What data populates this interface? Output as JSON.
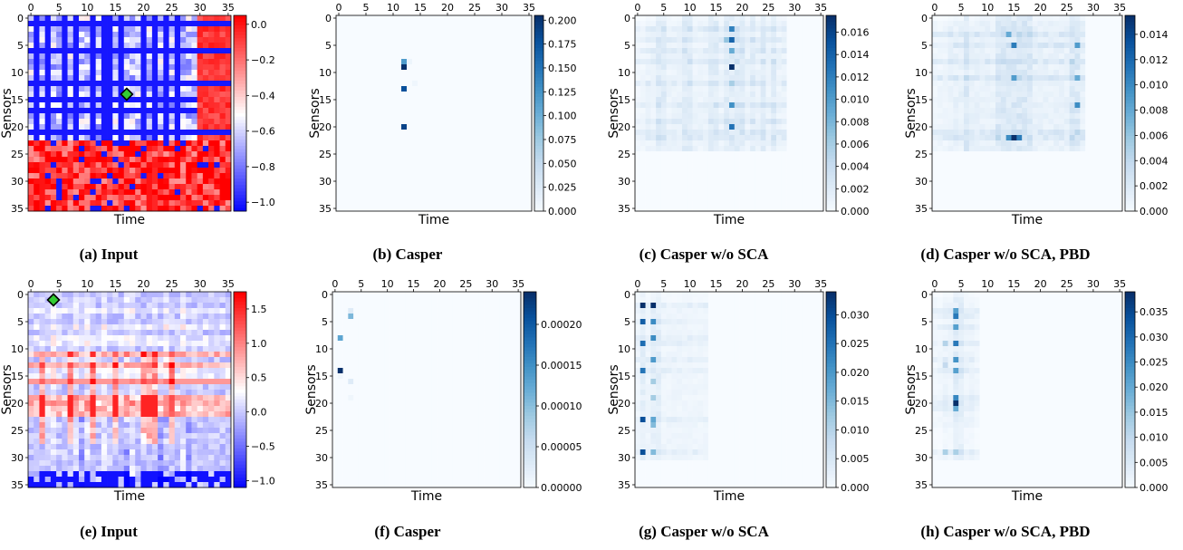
{
  "chart_data": [
    {
      "id": "a",
      "type": "heatmap",
      "caption": "(a) Input",
      "xlabel": "Time",
      "ylabel": "Sensors",
      "x_ticks": [
        0,
        5,
        10,
        15,
        20,
        25,
        30,
        35
      ],
      "y_ticks": [
        0,
        5,
        10,
        15,
        20,
        25,
        30,
        35
      ],
      "colormap": "bwr",
      "colorbar_ticks": [
        "0.0",
        "−0.2",
        "−0.4",
        "−0.6",
        "−0.8",
        "−1.0"
      ],
      "colorbar_range": [
        -1.05,
        0.05
      ],
      "marker": {
        "x": 17,
        "y": 14,
        "color": "#33cc33"
      },
      "pattern": {
        "rows_strong": [
          1,
          6,
          12,
          15,
          17,
          21
        ],
        "rows_light": [],
        "cols_strong": [
          1,
          3,
          6,
          8,
          11,
          13,
          14,
          16,
          20,
          22,
          24,
          26
        ],
        "cols_light": []
      }
    },
    {
      "id": "b",
      "type": "heatmap",
      "caption": "(b) Casper",
      "xlabel": "Time",
      "ylabel": "Sensors",
      "x_ticks": [
        0,
        5,
        10,
        15,
        20,
        25,
        30,
        35
      ],
      "y_ticks": [
        0,
        5,
        10,
        15,
        20,
        25,
        30,
        35
      ],
      "colormap": "Blues",
      "colorbar_ticks": [
        "0.200",
        "0.175",
        "0.150",
        "0.125",
        "0.100",
        "0.075",
        "0.050",
        "0.025",
        "0.000"
      ],
      "colorbar_range": [
        0,
        0.205
      ],
      "cells": [
        {
          "x": 12,
          "y": 8,
          "v": 0.12
        },
        {
          "x": 12,
          "y": 9,
          "v": 0.205
        },
        {
          "x": 12,
          "y": 13,
          "v": 0.18
        },
        {
          "x": 12,
          "y": 20,
          "v": 0.19
        },
        {
          "x": 13,
          "y": 8,
          "v": 0.01
        },
        {
          "x": 14,
          "y": 12,
          "v": 0.008
        }
      ]
    },
    {
      "id": "c",
      "type": "heatmap",
      "caption": "(c) Casper w/o SCA",
      "xlabel": "Time",
      "ylabel": "Sensors",
      "x_ticks": [
        0,
        5,
        10,
        15,
        20,
        25,
        30,
        35
      ],
      "y_ticks": [
        0,
        5,
        10,
        15,
        20,
        25,
        30,
        35
      ],
      "colormap": "Blues",
      "colorbar_ticks": [
        "0.016",
        "0.014",
        "0.012",
        "0.010",
        "0.008",
        "0.006",
        "0.004",
        "0.002",
        "0.000"
      ],
      "colorbar_range": [
        0,
        0.0175
      ],
      "cells": [
        {
          "x": 18,
          "y": 9,
          "v": 0.0175
        },
        {
          "x": 18,
          "y": 4,
          "v": 0.014
        },
        {
          "x": 18,
          "y": 2,
          "v": 0.012
        },
        {
          "x": 18,
          "y": 16,
          "v": 0.011
        },
        {
          "x": 18,
          "y": 20,
          "v": 0.013
        },
        {
          "x": 18,
          "y": 6,
          "v": 0.009
        },
        {
          "x": 17,
          "y": 4,
          "v": 0.007
        },
        {
          "x": 18,
          "y": 12,
          "v": 0.006
        }
      ],
      "pattern": {
        "rows_strong": [
          2,
          4,
          6,
          8,
          12,
          16,
          19,
          21,
          22
        ],
        "rows_light": [
          1,
          3,
          5,
          7,
          9,
          10,
          11,
          13,
          14,
          15,
          17,
          18,
          20,
          23,
          24
        ],
        "cols_strong": [
          4,
          5,
          9,
          10,
          14,
          15,
          17,
          18,
          19,
          20,
          22,
          24,
          26
        ],
        "cols_light": [
          2,
          3,
          6,
          7,
          8,
          11,
          12,
          13,
          16,
          21,
          23,
          25,
          27,
          28
        ],
        "max_row": 24,
        "max_col": 28,
        "scale": 0.004
      }
    },
    {
      "id": "d",
      "type": "heatmap",
      "caption": "(d) Casper w/o SCA, PBD",
      "xlabel": "Time",
      "ylabel": "Sensors",
      "x_ticks": [
        0,
        5,
        10,
        15,
        20,
        25,
        30,
        35
      ],
      "y_ticks": [
        0,
        5,
        10,
        15,
        20,
        25,
        30,
        35
      ],
      "colormap": "Blues",
      "colorbar_ticks": [
        "0.014",
        "0.012",
        "0.010",
        "0.008",
        "0.006",
        "0.004",
        "0.002",
        "0.000"
      ],
      "colorbar_range": [
        0,
        0.0155
      ],
      "cells": [
        {
          "x": 15,
          "y": 22,
          "v": 0.0155
        },
        {
          "x": 16,
          "y": 22,
          "v": 0.011
        },
        {
          "x": 14,
          "y": 22,
          "v": 0.01
        },
        {
          "x": 15,
          "y": 5,
          "v": 0.011
        },
        {
          "x": 15,
          "y": 11,
          "v": 0.009
        },
        {
          "x": 27,
          "y": 16,
          "v": 0.01
        },
        {
          "x": 27,
          "y": 5,
          "v": 0.009
        },
        {
          "x": 14,
          "y": 3,
          "v": 0.008
        },
        {
          "x": 27,
          "y": 11,
          "v": 0.008
        }
      ],
      "pattern": {
        "rows_strong": [
          3,
          5,
          8,
          11,
          21,
          22
        ],
        "rows_light": [
          1,
          2,
          4,
          6,
          7,
          9,
          10,
          12,
          13,
          14,
          15,
          16,
          17,
          18,
          19,
          20,
          23,
          24
        ],
        "cols_strong": [
          6,
          12,
          13,
          14,
          15,
          16,
          17,
          18,
          26,
          27
        ],
        "cols_light": [
          3,
          4,
          5,
          7,
          8,
          9,
          10,
          11,
          19,
          20,
          21,
          22,
          23,
          24,
          25,
          28
        ],
        "max_row": 24,
        "max_col": 28,
        "scale": 0.0045
      }
    },
    {
      "id": "e",
      "type": "heatmap",
      "caption": "(e) Input",
      "xlabel": "Time",
      "ylabel": "Sensors",
      "x_ticks": [
        0,
        5,
        10,
        15,
        20,
        25,
        30,
        35
      ],
      "y_ticks": [
        0,
        5,
        10,
        15,
        20,
        25,
        30,
        35
      ],
      "colormap": "bwr",
      "colorbar_ticks": [
        "1.5",
        "1.0",
        "0.5",
        "0.0",
        "−0.5",
        "−1.0"
      ],
      "colorbar_range": [
        -1.1,
        1.75
      ],
      "marker": {
        "x": 4,
        "y": 1,
        "color": "#33cc33"
      },
      "pattern": {
        "rows_strong": [
          11,
          13,
          16,
          19,
          20,
          21,
          22
        ],
        "rows_light": [
          3,
          6,
          8,
          9,
          14,
          15
        ],
        "cols_strong": [
          2,
          7,
          11,
          15,
          20,
          21,
          22,
          25
        ],
        "cols_light": [
          4,
          8,
          10,
          13,
          17,
          18,
          24,
          27
        ],
        "neg_rows": [
          23,
          28,
          33,
          34,
          35
        ],
        "neg_cols": [
          9,
          17,
          23,
          24,
          28
        ]
      }
    },
    {
      "id": "f",
      "type": "heatmap",
      "caption": "(f) Casper",
      "xlabel": "Time",
      "ylabel": "Sensors",
      "x_ticks": [
        0,
        5,
        10,
        15,
        20,
        25,
        30,
        35
      ],
      "y_ticks": [
        0,
        5,
        10,
        15,
        20,
        25,
        30,
        35
      ],
      "colormap": "Blues",
      "colorbar_ticks": [
        "0.00020",
        "0.00015",
        "0.00010",
        "0.00005",
        "0.00000"
      ],
      "colorbar_range": [
        0,
        0.00024
      ],
      "cells": [
        {
          "x": 1,
          "y": 14,
          "v": 0.00024
        },
        {
          "x": 1,
          "y": 8,
          "v": 0.00013
        },
        {
          "x": 3,
          "y": 4,
          "v": 0.00011
        },
        {
          "x": 3,
          "y": 3,
          "v": 3e-05
        },
        {
          "x": 3,
          "y": 16,
          "v": 3e-05
        },
        {
          "x": 3,
          "y": 19,
          "v": 1e-05
        },
        {
          "x": 1,
          "y": 15,
          "v": 1e-05
        }
      ]
    },
    {
      "id": "g",
      "type": "heatmap",
      "caption": "(g) Casper w/o SCA",
      "xlabel": "Time",
      "ylabel": "Sensors",
      "x_ticks": [
        0,
        5,
        10,
        15,
        20,
        25,
        30,
        35
      ],
      "y_ticks": [
        0,
        5,
        10,
        15,
        20,
        25,
        30,
        35
      ],
      "colormap": "Blues",
      "colorbar_ticks": [
        "0.030",
        "0.025",
        "0.020",
        "0.015",
        "0.010",
        "0.005",
        "0.000"
      ],
      "colorbar_range": [
        0,
        0.034
      ],
      "cells": [
        {
          "x": 1,
          "y": 2,
          "v": 0.034
        },
        {
          "x": 1,
          "y": 5,
          "v": 0.028
        },
        {
          "x": 1,
          "y": 9,
          "v": 0.026
        },
        {
          "x": 1,
          "y": 14,
          "v": 0.025
        },
        {
          "x": 1,
          "y": 23,
          "v": 0.03
        },
        {
          "x": 1,
          "y": 29,
          "v": 0.03
        },
        {
          "x": 3,
          "y": 2,
          "v": 0.034
        },
        {
          "x": 3,
          "y": 5,
          "v": 0.022
        },
        {
          "x": 3,
          "y": 8,
          "v": 0.022
        },
        {
          "x": 3,
          "y": 12,
          "v": 0.02
        },
        {
          "x": 3,
          "y": 23,
          "v": 0.018
        },
        {
          "x": 3,
          "y": 24,
          "v": 0.015
        },
        {
          "x": 3,
          "y": 29,
          "v": 0.015
        },
        {
          "x": 3,
          "y": 16,
          "v": 0.012
        },
        {
          "x": 3,
          "y": 19,
          "v": 0.012
        }
      ],
      "pattern": {
        "rows_strong": [
          2,
          5,
          8,
          9,
          12,
          14,
          23,
          29
        ],
        "rows_light": [
          3,
          4,
          6,
          7,
          10,
          11,
          13,
          15,
          16,
          17,
          18,
          19,
          20,
          21,
          22,
          24,
          25,
          26,
          27,
          28,
          30
        ],
        "cols_strong": [
          1,
          3,
          4
        ],
        "cols_light": [
          0,
          2,
          5,
          6,
          7,
          8,
          9,
          10,
          11,
          12,
          13
        ],
        "max_row": 30,
        "max_col": 13,
        "scale": 0.006
      }
    },
    {
      "id": "h",
      "type": "heatmap",
      "caption": "(h) Casper w/o SCA, PBD",
      "xlabel": "Time",
      "ylabel": "Sensors",
      "x_ticks": [
        0,
        5,
        10,
        15,
        20,
        25,
        30,
        35
      ],
      "y_ticks": [
        0,
        5,
        10,
        15,
        20,
        25,
        30,
        35
      ],
      "colormap": "Blues",
      "colorbar_ticks": [
        "0.035",
        "0.030",
        "0.025",
        "0.020",
        "0.015",
        "0.010",
        "0.005",
        "0.000"
      ],
      "colorbar_range": [
        0,
        0.039
      ],
      "cells": [
        {
          "x": 4,
          "y": 20,
          "v": 0.039
        },
        {
          "x": 4,
          "y": 4,
          "v": 0.028
        },
        {
          "x": 4,
          "y": 9,
          "v": 0.028
        },
        {
          "x": 4,
          "y": 3,
          "v": 0.022
        },
        {
          "x": 4,
          "y": 6,
          "v": 0.022
        },
        {
          "x": 4,
          "y": 12,
          "v": 0.024
        },
        {
          "x": 4,
          "y": 14,
          "v": 0.022
        },
        {
          "x": 4,
          "y": 19,
          "v": 0.026
        },
        {
          "x": 4,
          "y": 21,
          "v": 0.02
        },
        {
          "x": 2,
          "y": 29,
          "v": 0.013
        },
        {
          "x": 4,
          "y": 29,
          "v": 0.013
        },
        {
          "x": 2,
          "y": 9,
          "v": 0.012
        },
        {
          "x": 2,
          "y": 13,
          "v": 0.01
        }
      ],
      "pattern": {
        "rows_strong": [
          3,
          4,
          6,
          9,
          12,
          14,
          19,
          20,
          21,
          29
        ],
        "rows_light": [
          1,
          2,
          5,
          7,
          8,
          10,
          11,
          13,
          15,
          16,
          17,
          18,
          22,
          23,
          24,
          30
        ],
        "cols_strong": [
          4,
          5
        ],
        "cols_light": [
          2,
          3,
          6,
          7
        ],
        "max_row": 30,
        "max_col": 8,
        "scale": 0.008
      }
    }
  ]
}
